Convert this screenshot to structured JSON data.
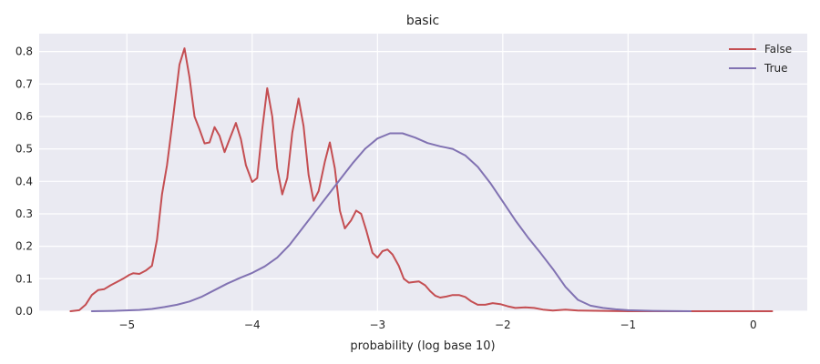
{
  "chart_data": {
    "type": "line",
    "title": "basic",
    "xlabel": "probability (log base 10)",
    "ylabel": "",
    "xlim": [
      -5.7,
      0.43
    ],
    "ylim": [
      0,
      0.855
    ],
    "xticks": [
      -5,
      -4,
      -3,
      -2,
      -1,
      0
    ],
    "xtick_labels": [
      "−5",
      "−4",
      "−3",
      "−2",
      "−1",
      "0"
    ],
    "yticks": [
      0,
      0.1,
      0.2,
      0.3,
      0.4,
      0.5,
      0.6,
      0.7,
      0.8
    ],
    "ytick_labels": [
      "0.0",
      "0.1",
      "0.2",
      "0.3",
      "0.4",
      "0.5",
      "0.6",
      "0.7",
      "0.8"
    ],
    "grid": true,
    "legend_position": "top-right",
    "background": "#eaeaf2",
    "series": [
      {
        "name": "False",
        "color": "#c44e52",
        "points": [
          [
            -5.45,
            0.0
          ],
          [
            -5.38,
            0.003
          ],
          [
            -5.33,
            0.02
          ],
          [
            -5.28,
            0.05
          ],
          [
            -5.23,
            0.065
          ],
          [
            -5.18,
            0.068
          ],
          [
            -5.13,
            0.08
          ],
          [
            -5.08,
            0.09
          ],
          [
            -5.03,
            0.1
          ],
          [
            -4.98,
            0.112
          ],
          [
            -4.95,
            0.117
          ],
          [
            -4.9,
            0.115
          ],
          [
            -4.85,
            0.125
          ],
          [
            -4.8,
            0.14
          ],
          [
            -4.76,
            0.22
          ],
          [
            -4.72,
            0.36
          ],
          [
            -4.68,
            0.45
          ],
          [
            -4.63,
            0.6
          ],
          [
            -4.58,
            0.76
          ],
          [
            -4.54,
            0.81
          ],
          [
            -4.5,
            0.72
          ],
          [
            -4.46,
            0.6
          ],
          [
            -4.42,
            0.56
          ],
          [
            -4.38,
            0.517
          ],
          [
            -4.34,
            0.52
          ],
          [
            -4.3,
            0.567
          ],
          [
            -4.26,
            0.54
          ],
          [
            -4.22,
            0.49
          ],
          [
            -4.18,
            0.53
          ],
          [
            -4.13,
            0.58
          ],
          [
            -4.09,
            0.53
          ],
          [
            -4.05,
            0.45
          ],
          [
            -4.0,
            0.398
          ],
          [
            -3.96,
            0.41
          ],
          [
            -3.92,
            0.56
          ],
          [
            -3.88,
            0.687
          ],
          [
            -3.84,
            0.6
          ],
          [
            -3.8,
            0.44
          ],
          [
            -3.76,
            0.36
          ],
          [
            -3.72,
            0.41
          ],
          [
            -3.68,
            0.55
          ],
          [
            -3.63,
            0.655
          ],
          [
            -3.59,
            0.57
          ],
          [
            -3.55,
            0.42
          ],
          [
            -3.51,
            0.34
          ],
          [
            -3.47,
            0.37
          ],
          [
            -3.42,
            0.46
          ],
          [
            -3.38,
            0.52
          ],
          [
            -3.34,
            0.44
          ],
          [
            -3.3,
            0.31
          ],
          [
            -3.26,
            0.255
          ],
          [
            -3.21,
            0.28
          ],
          [
            -3.17,
            0.31
          ],
          [
            -3.13,
            0.3
          ],
          [
            -3.09,
            0.25
          ],
          [
            -3.04,
            0.18
          ],
          [
            -3.0,
            0.165
          ],
          [
            -2.96,
            0.185
          ],
          [
            -2.92,
            0.19
          ],
          [
            -2.88,
            0.175
          ],
          [
            -2.83,
            0.14
          ],
          [
            -2.79,
            0.1
          ],
          [
            -2.75,
            0.088
          ],
          [
            -2.71,
            0.09
          ],
          [
            -2.67,
            0.092
          ],
          [
            -2.62,
            0.08
          ],
          [
            -2.58,
            0.062
          ],
          [
            -2.54,
            0.048
          ],
          [
            -2.5,
            0.042
          ],
          [
            -2.45,
            0.045
          ],
          [
            -2.4,
            0.05
          ],
          [
            -2.35,
            0.05
          ],
          [
            -2.3,
            0.044
          ],
          [
            -2.25,
            0.03
          ],
          [
            -2.2,
            0.02
          ],
          [
            -2.14,
            0.02
          ],
          [
            -2.08,
            0.025
          ],
          [
            -2.02,
            0.022
          ],
          [
            -1.96,
            0.015
          ],
          [
            -1.9,
            0.01
          ],
          [
            -1.82,
            0.012
          ],
          [
            -1.75,
            0.01
          ],
          [
            -1.68,
            0.005
          ],
          [
            -1.6,
            0.002
          ],
          [
            -1.5,
            0.005
          ],
          [
            -1.4,
            0.002
          ],
          [
            -1.2,
            0.001
          ],
          [
            -1.0,
            0.0
          ],
          [
            -0.7,
            0.0
          ],
          [
            -0.4,
            0.0
          ],
          [
            -0.1,
            0.0
          ],
          [
            0.15,
            0.0
          ]
        ]
      },
      {
        "name": "True",
        "color": "#8172b2",
        "points": [
          [
            -5.28,
            0.0
          ],
          [
            -5.1,
            0.001
          ],
          [
            -4.9,
            0.004
          ],
          [
            -4.8,
            0.007
          ],
          [
            -4.7,
            0.013
          ],
          [
            -4.6,
            0.02
          ],
          [
            -4.5,
            0.03
          ],
          [
            -4.4,
            0.045
          ],
          [
            -4.3,
            0.065
          ],
          [
            -4.2,
            0.085
          ],
          [
            -4.1,
            0.102
          ],
          [
            -4.0,
            0.118
          ],
          [
            -3.9,
            0.138
          ],
          [
            -3.8,
            0.165
          ],
          [
            -3.7,
            0.205
          ],
          [
            -3.6,
            0.255
          ],
          [
            -3.5,
            0.305
          ],
          [
            -3.4,
            0.355
          ],
          [
            -3.3,
            0.405
          ],
          [
            -3.2,
            0.455
          ],
          [
            -3.1,
            0.5
          ],
          [
            -3.0,
            0.532
          ],
          [
            -2.9,
            0.548
          ],
          [
            -2.8,
            0.548
          ],
          [
            -2.7,
            0.535
          ],
          [
            -2.6,
            0.518
          ],
          [
            -2.5,
            0.508
          ],
          [
            -2.4,
            0.5
          ],
          [
            -2.3,
            0.48
          ],
          [
            -2.2,
            0.445
          ],
          [
            -2.1,
            0.395
          ],
          [
            -2.0,
            0.338
          ],
          [
            -1.9,
            0.28
          ],
          [
            -1.8,
            0.228
          ],
          [
            -1.7,
            0.18
          ],
          [
            -1.6,
            0.13
          ],
          [
            -1.5,
            0.075
          ],
          [
            -1.4,
            0.035
          ],
          [
            -1.3,
            0.017
          ],
          [
            -1.2,
            0.01
          ],
          [
            -1.1,
            0.006
          ],
          [
            -1.0,
            0.003
          ],
          [
            -0.8,
            0.001
          ],
          [
            -0.5,
            0.0
          ]
        ]
      }
    ]
  }
}
